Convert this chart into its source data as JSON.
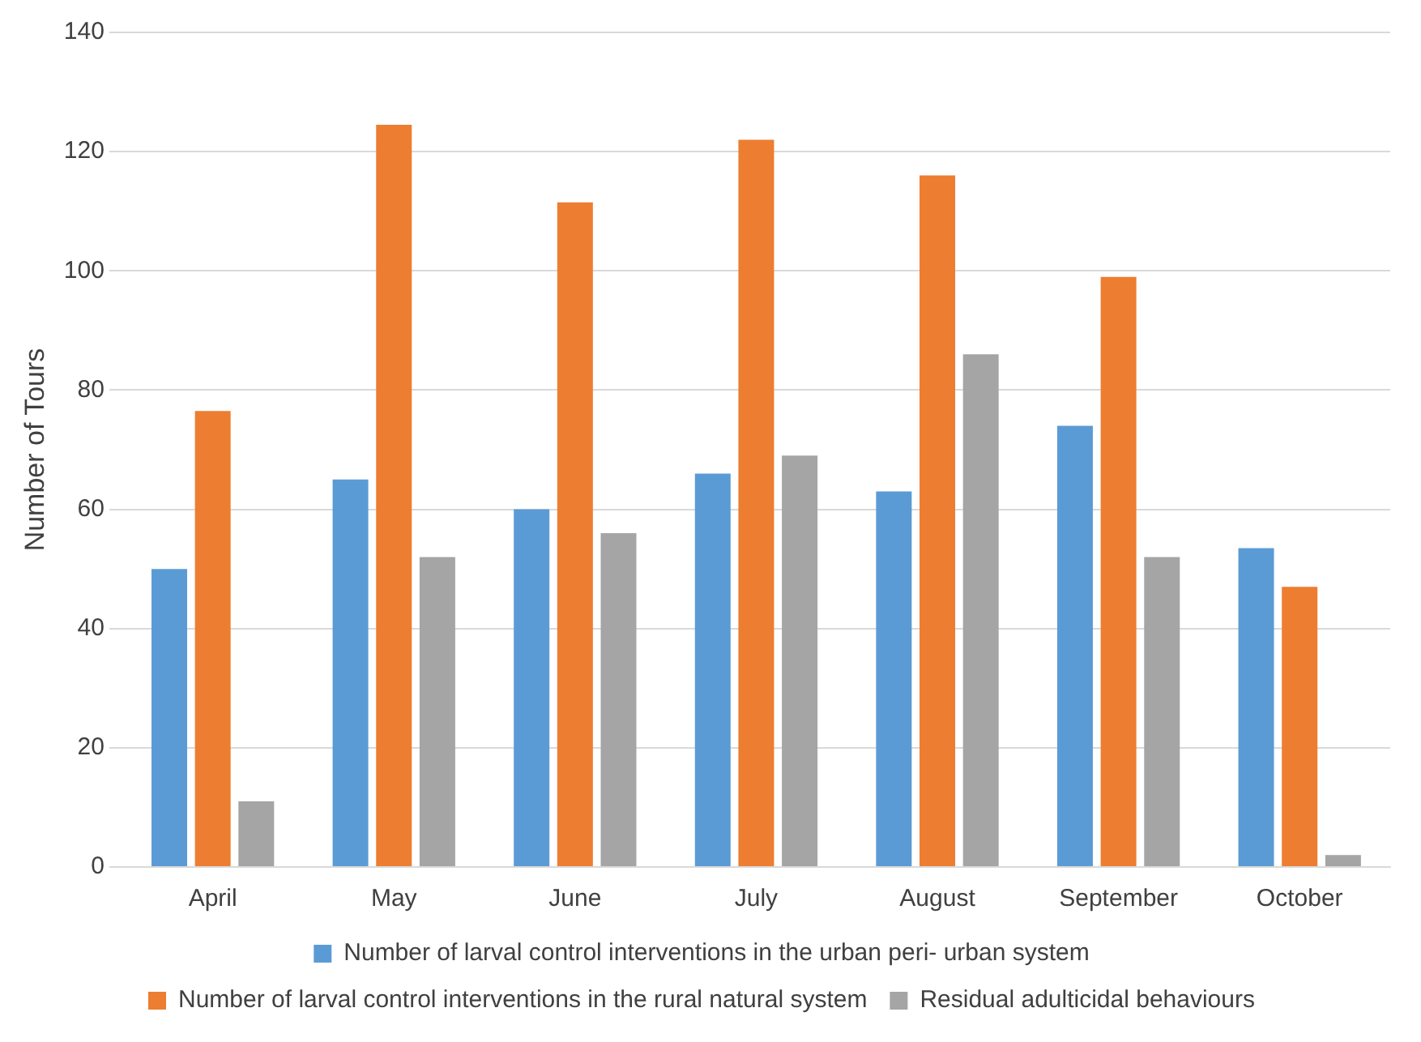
{
  "chart_data": {
    "type": "bar",
    "ylabel": "Number of Tours",
    "categories": [
      "April",
      "May",
      "June",
      "July",
      "August",
      "September",
      "October"
    ],
    "series": [
      {
        "name": "Number of larval control interventions in the urban peri- urban system",
        "color": "#5b9bd5",
        "values": [
          50,
          65,
          60,
          66,
          63,
          74,
          53.5
        ]
      },
      {
        "name": "Number of larval control interventions in the rural natural system",
        "color": "#ed7d31",
        "values": [
          76.5,
          124.5,
          111.5,
          122,
          116,
          99,
          47
        ]
      },
      {
        "name": "Residual adulticidal behaviours",
        "color": "#a5a5a5",
        "values": [
          11,
          52,
          56,
          69,
          86,
          52,
          2
        ]
      }
    ],
    "ylim": [
      0,
      140
    ],
    "yticks": [
      0,
      20,
      40,
      60,
      80,
      100,
      120,
      140
    ],
    "grid": "y",
    "legend": "bottom"
  }
}
